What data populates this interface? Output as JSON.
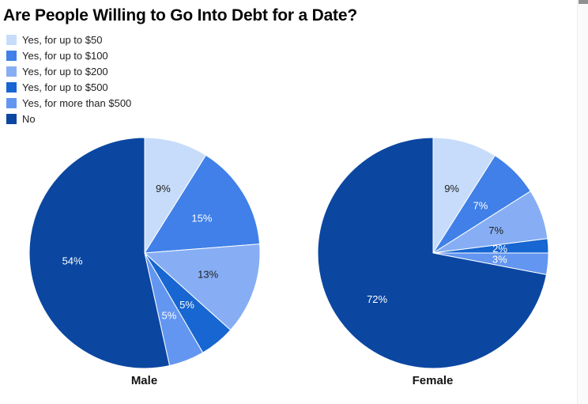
{
  "chart_data": {
    "type": "pie",
    "title": "Are People Willing to Go Into Debt for a Date?",
    "legend_position": "top-left vertical",
    "start_angle": 0,
    "direction": "clockwise",
    "categories": [
      "Yes, for up to $50",
      "Yes, for up to $100",
      "Yes, for up to $200",
      "Yes, for up to $500",
      "Yes, for more than $500",
      "No"
    ],
    "series_colors": [
      "#c7dcfa",
      "#4080e8",
      "#87aef4",
      "#1766d1",
      "#6396f0",
      "#0b47a1"
    ],
    "slice_label_colors": [
      "#1f1f1f",
      "#ffffff",
      "#1f1f1f",
      "#ffffff",
      "#ffffff",
      "#ffffff"
    ],
    "pies": [
      {
        "name": "Male",
        "values": [
          9,
          15,
          13,
          5,
          5,
          54
        ],
        "labels": [
          "9%",
          "15%",
          "13%",
          "5%",
          "5%",
          "54%"
        ]
      },
      {
        "name": "Female",
        "values": [
          9,
          7,
          7,
          2,
          3,
          72
        ],
        "labels": [
          "9%",
          "7%",
          "7%",
          "2%",
          "3%",
          "72%"
        ]
      }
    ]
  }
}
